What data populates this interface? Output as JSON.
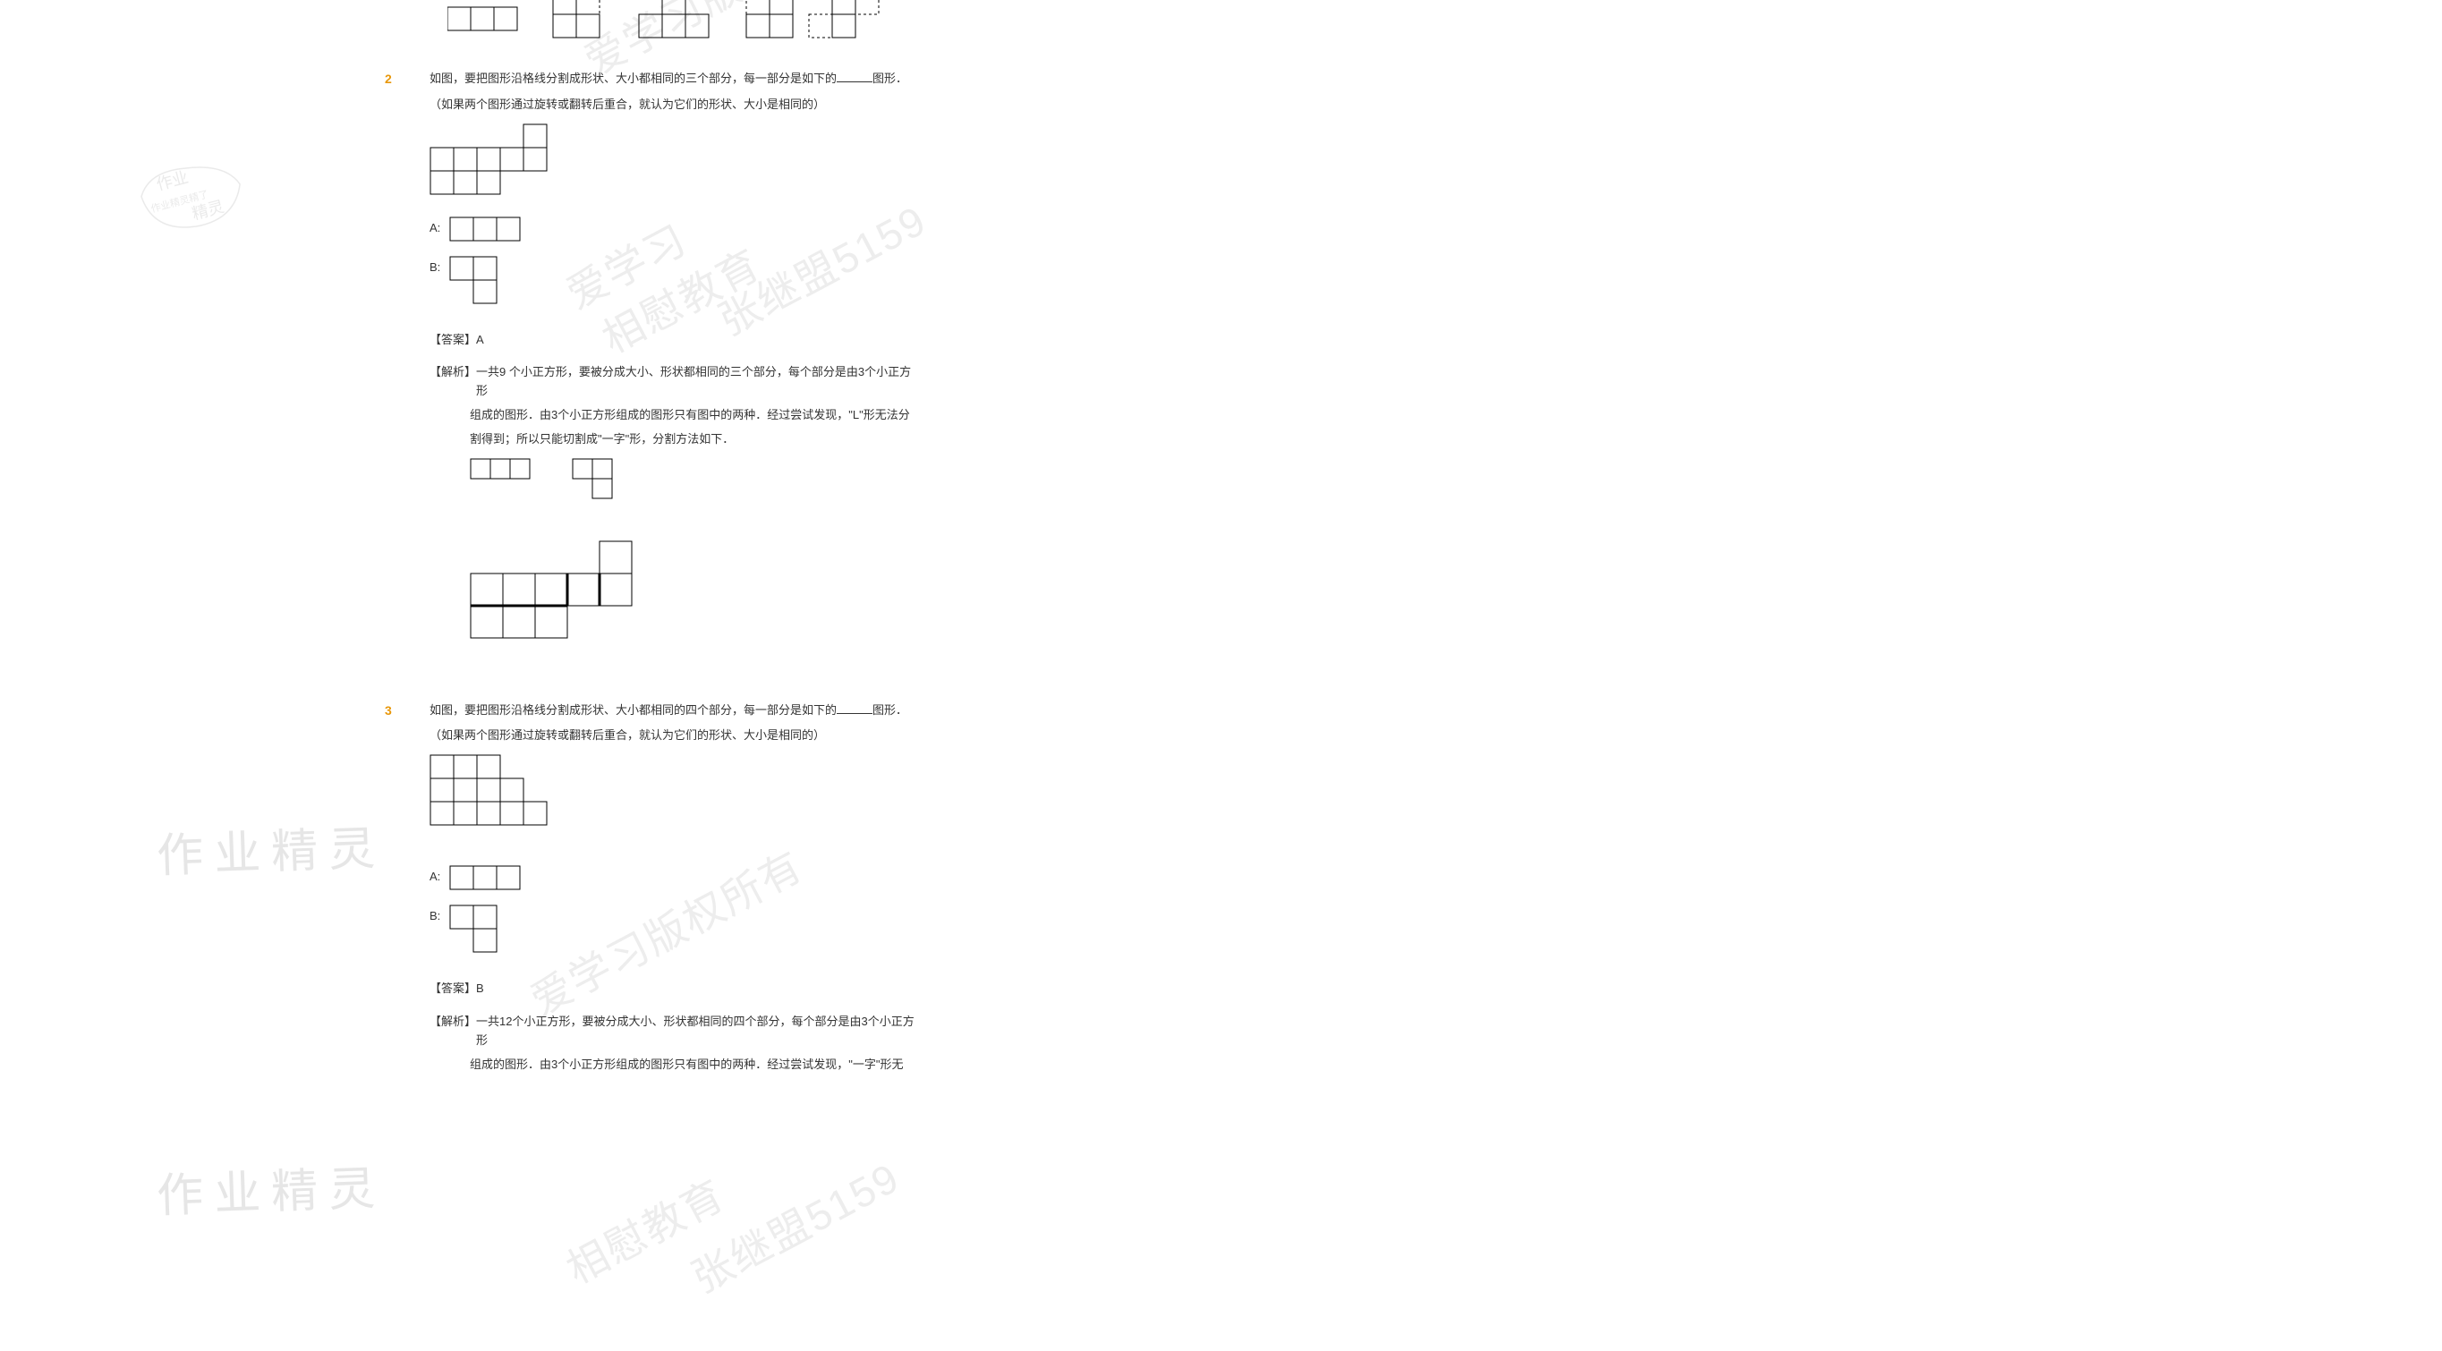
{
  "watermarks": {
    "text1": "作业精灵",
    "text2": "作业精灵",
    "stamp_line1": "作业",
    "stamp_line2": "作业精灵精了",
    "stamp_line3": "精灵",
    "diag1_a": "爱学习版权所",
    "diag1_b": "相慰教育",
    "diag1_c": "张继盟5159",
    "diag2_a": "爱学习",
    "diag2_b": "相慰教育",
    "diag2_c": "张继盟5159",
    "diag3_a": "爱学习版权所有",
    "diag3_b": "相慰教育",
    "diag3_c": "张继盟5159"
  },
  "top_figs": {
    "cell": 26,
    "stroke": "#000000",
    "gap": 34
  },
  "q2": {
    "num": "2",
    "stem_part1": "如图，要把图形沿格线分割成形状、大小都相同的三个部分，每一部分是如下的",
    "stem_part2": "图形．",
    "note": "（如果两个图形通过旋转或翻转后重合，就认为它们的形状、大小是相同的）",
    "figure": {
      "cell": 26,
      "stroke": "#000000",
      "cells": [
        [
          0,
          0
        ],
        [
          0,
          1
        ],
        [
          0,
          2
        ],
        [
          0,
          3
        ],
        [
          0,
          4
        ],
        [
          -1,
          4
        ],
        [
          1,
          0
        ],
        [
          1,
          1
        ],
        [
          1,
          2
        ]
      ]
    },
    "optA": {
      "label": "A:",
      "cell": 26,
      "cells": [
        [
          0,
          0
        ],
        [
          0,
          1
        ],
        [
          0,
          2
        ]
      ]
    },
    "optB": {
      "label": "B:",
      "cell": 26,
      "cells": [
        [
          0,
          0
        ],
        [
          0,
          1
        ],
        [
          1,
          1
        ]
      ]
    },
    "answer_tag": "【答案】",
    "answer_val": "A",
    "analysis_tag": "【解析】",
    "analysis_l1": "一共9 个小正方形，要被分成大小、形状都相同的三个部分，每个部分是由3个小正方形",
    "analysis_l2": "组成的图形．由3个小正方形组成的图形只有图中的两种．经过尝试发现，\"L\"形无法分",
    "analysis_l3": "割得到；所以只能切割成\"一字\"形，分割方法如下．",
    "mini_figs": {
      "cell": 22,
      "a_cells": [
        [
          0,
          0
        ],
        [
          0,
          1
        ],
        [
          0,
          2
        ]
      ],
      "b_cells": [
        [
          0,
          0
        ],
        [
          0,
          1
        ],
        [
          1,
          1
        ]
      ]
    },
    "solution_fig": {
      "cell": 36,
      "cells": [
        [
          1,
          0
        ],
        [
          1,
          1
        ],
        [
          1,
          2
        ],
        [
          1,
          3
        ],
        [
          0,
          4
        ],
        [
          1,
          4
        ],
        [
          2,
          0
        ],
        [
          2,
          1
        ],
        [
          2,
          2
        ]
      ],
      "stroke": "#000000",
      "bold_edges": [
        [
          [
            2,
            0
          ],
          [
            2,
            3
          ]
        ],
        [
          [
            1,
            4
          ],
          [
            2,
            4
          ]
        ],
        [
          [
            1,
            3
          ],
          [
            2,
            3
          ]
        ]
      ]
    }
  },
  "q3": {
    "num": "3",
    "stem_part1": "如图，要把图形沿格线分割成形状、大小都相同的四个部分，每一部分是如下的",
    "stem_part2": "图形．",
    "note": "（如果两个图形通过旋转或翻转后重合，就认为它们的形状、大小是相同的）",
    "figure": {
      "cell": 26,
      "stroke": "#000000",
      "cells": [
        [
          0,
          0
        ],
        [
          0,
          1
        ],
        [
          0,
          2
        ],
        [
          1,
          0
        ],
        [
          1,
          1
        ],
        [
          1,
          2
        ],
        [
          1,
          3
        ],
        [
          2,
          0
        ],
        [
          2,
          1
        ],
        [
          2,
          2
        ],
        [
          2,
          3
        ],
        [
          2,
          4
        ]
      ]
    },
    "optA": {
      "label": "A:",
      "cell": 26,
      "cells": [
        [
          0,
          0
        ],
        [
          0,
          1
        ],
        [
          0,
          2
        ]
      ]
    },
    "optB": {
      "label": "B:",
      "cell": 26,
      "cells": [
        [
          0,
          0
        ],
        [
          0,
          1
        ],
        [
          1,
          1
        ]
      ]
    },
    "answer_tag": "【答案】",
    "answer_val": "B",
    "analysis_tag": "【解析】",
    "analysis_l1": "一共12个小正方形，要被分成大小、形状都相同的四个部分，每个部分是由3个小正方形",
    "analysis_l2": "组成的图形．由3个小正方形组成的图形只有图中的两种．经过尝试发现，\"一字\"形无"
  },
  "colors": {
    "qnum": "#e8970a",
    "text": "#333333",
    "bg": "#ffffff",
    "wm_light": "#e6e6e6",
    "wm_diag": "#ededed"
  }
}
